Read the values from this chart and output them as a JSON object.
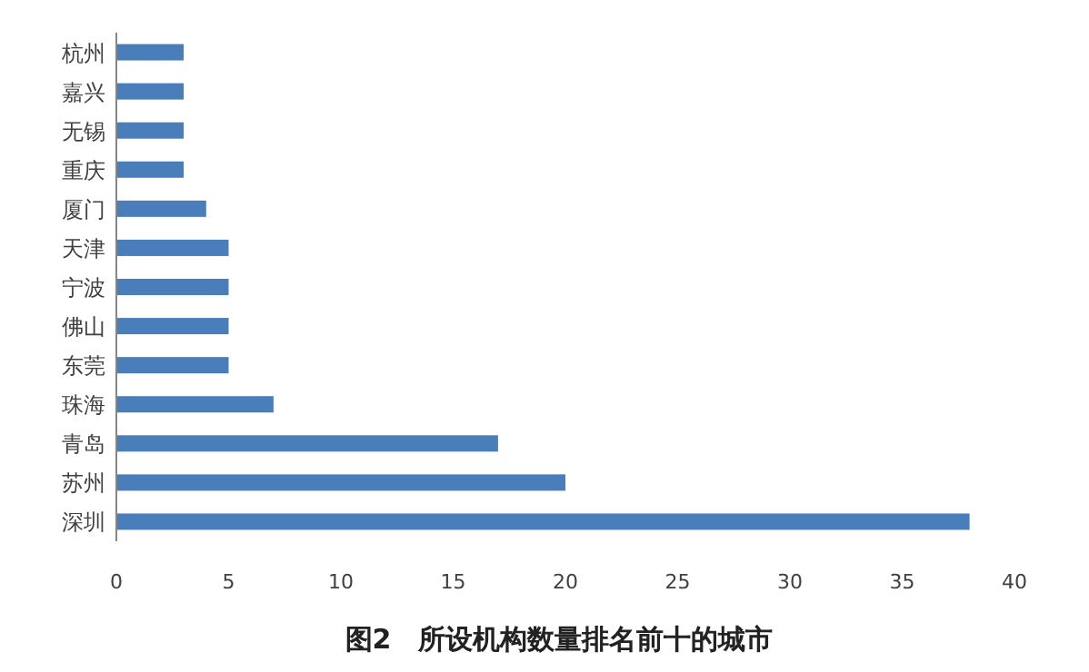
{
  "chart_data": {
    "type": "bar",
    "orientation": "horizontal",
    "title": "图2　所设机构数量排名前十的城市",
    "categories": [
      "杭州",
      "嘉兴",
      "无锡",
      "重庆",
      "厦门",
      "天津",
      "宁波",
      "佛山",
      "东莞",
      "珠海",
      "青岛",
      "苏州",
      "深圳"
    ],
    "values": [
      3,
      3,
      3,
      3,
      4,
      5,
      5,
      5,
      5,
      7,
      17,
      20,
      38
    ],
    "color": "#4a7ebb",
    "xlim": [
      0,
      40
    ],
    "xticks": [
      0,
      5,
      10,
      15,
      20,
      25,
      30,
      35,
      40
    ]
  }
}
